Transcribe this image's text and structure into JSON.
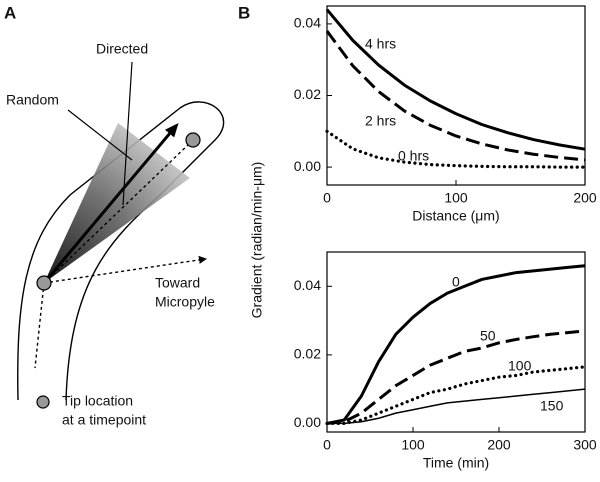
{
  "panels": [
    "A",
    "B"
  ],
  "diagram": {
    "random_label": "Random",
    "directed_label": "Directed",
    "toward_label": [
      "Toward",
      "Micropyle"
    ],
    "tip_label": [
      "Tip location",
      "at a timepoint"
    ]
  },
  "shared_ylabel": "Gradient (radian/min-μm)",
  "chart_data": [
    {
      "type": "line",
      "xlabel": "Distance (μm)",
      "x": [
        0,
        20,
        40,
        60,
        80,
        100,
        120,
        140,
        160,
        180,
        200
      ],
      "series": [
        {
          "name": "4 hrs",
          "color": "#000000",
          "line_style": "solid",
          "values": [
            0.044,
            0.0354,
            0.0285,
            0.0229,
            0.0185,
            0.0149,
            0.0119,
            0.0096,
            0.0077,
            0.0062,
            0.005
          ]
        },
        {
          "name": "2 hrs",
          "color": "#000000",
          "line_style": "dashed",
          "values": [
            0.038,
            0.0283,
            0.0211,
            0.0157,
            0.0117,
            0.0087,
            0.0065,
            0.0048,
            0.0036,
            0.0027,
            0.002
          ]
        },
        {
          "name": "0 hrs",
          "color": "#000000",
          "line_style": "dotted",
          "values": [
            0.01,
            0.0051,
            0.0026,
            0.0014,
            0.0007,
            0.0004,
            0.0002,
            0.0001,
            0.0001,
            0.0,
            0.0
          ]
        }
      ],
      "xlim": [
        0,
        200
      ],
      "xticks": [
        0,
        100,
        200
      ],
      "ylim": [
        -0.005,
        0.045
      ],
      "yticks": [
        {
          "value": 0,
          "label": "0.00"
        },
        {
          "value": 0.02,
          "label": "0.02"
        },
        {
          "value": 0.04,
          "label": "0.04"
        }
      ]
    },
    {
      "type": "line",
      "xlabel": "Time (min)",
      "x": [
        0,
        20,
        40,
        60,
        80,
        100,
        120,
        140,
        160,
        180,
        200,
        220,
        240,
        260,
        280,
        300
      ],
      "series": [
        {
          "name": "0",
          "color": "#000000",
          "line_style": "solid",
          "values": [
            0,
            0.001,
            0.008,
            0.018,
            0.026,
            0.031,
            0.035,
            0.038,
            0.04,
            0.042,
            0.043,
            0.044,
            0.0445,
            0.045,
            0.0455,
            0.046
          ]
        },
        {
          "name": "50",
          "color": "#000000",
          "line_style": "dashed",
          "values": [
            0,
            0.0005,
            0.003,
            0.007,
            0.011,
            0.014,
            0.017,
            0.019,
            0.021,
            0.022,
            0.0235,
            0.0245,
            0.0253,
            0.026,
            0.0265,
            0.027
          ]
        },
        {
          "name": "100",
          "color": "#000000",
          "line_style": "dotted",
          "values": [
            0,
            0,
            0.001,
            0.003,
            0.005,
            0.007,
            0.009,
            0.01,
            0.0115,
            0.0125,
            0.0135,
            0.014,
            0.015,
            0.0155,
            0.016,
            0.0165
          ]
        },
        {
          "name": "150",
          "color": "#000000",
          "line_style": "thin",
          "values": [
            0,
            0,
            0.0005,
            0.0015,
            0.003,
            0.004,
            0.005,
            0.006,
            0.0065,
            0.007,
            0.0075,
            0.008,
            0.0085,
            0.009,
            0.0095,
            0.01
          ]
        }
      ],
      "xlim": [
        0,
        300
      ],
      "xticks": [
        0,
        100,
        200,
        300
      ],
      "ylim": [
        -0.0025,
        0.05
      ],
      "yticks": [
        {
          "value": 0,
          "label": "0.00"
        },
        {
          "value": 0.02,
          "label": "0.02"
        },
        {
          "value": 0.04,
          "label": "0.04"
        }
      ]
    }
  ]
}
